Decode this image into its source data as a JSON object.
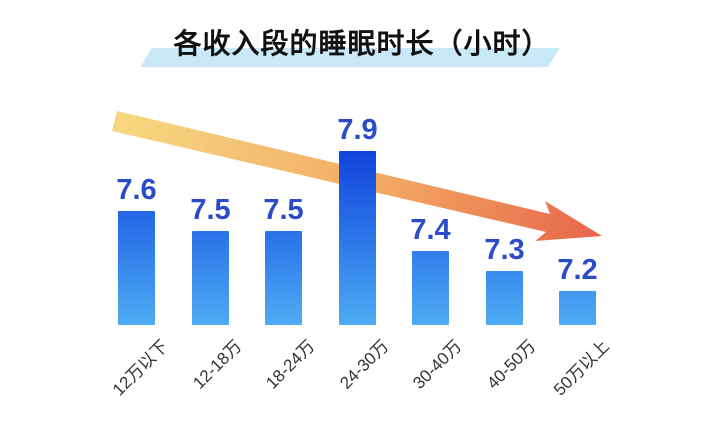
{
  "title": "各收入段的睡眠时长（小时）",
  "colors": {
    "background": "#FFFFFF",
    "title_text": "#111111",
    "title_highlight": "#C9E9F8",
    "bar_top": "#1243DC",
    "bar_mid": "#2F7BE9",
    "bar_bottom": "#4FACF4",
    "value_label": "#2B4BC8",
    "axis_label": "#333333",
    "arrow_start": "#F7D981",
    "arrow_mid": "#F2A963",
    "arrow_end": "#E8654A"
  },
  "chart_data": {
    "type": "bar",
    "title": "各收入段的睡眠时长（小时）",
    "categories": [
      "12万以下",
      "12-18万",
      "18-24万",
      "24-30万",
      "30-40万",
      "40-50万",
      "50万以上"
    ],
    "values": [
      7.6,
      7.5,
      7.5,
      7.9,
      7.4,
      7.3,
      7.2
    ],
    "unit": "小时",
    "xlabel": "",
    "ylabel": "",
    "grid": false,
    "axes_shown": false,
    "value_labels_shown": true,
    "legend": null,
    "annotations": [
      {
        "name": "trend-arrow",
        "description": "橙色下行趋势箭头，从左上到右下，穿过最高的柱子后方"
      }
    ]
  }
}
